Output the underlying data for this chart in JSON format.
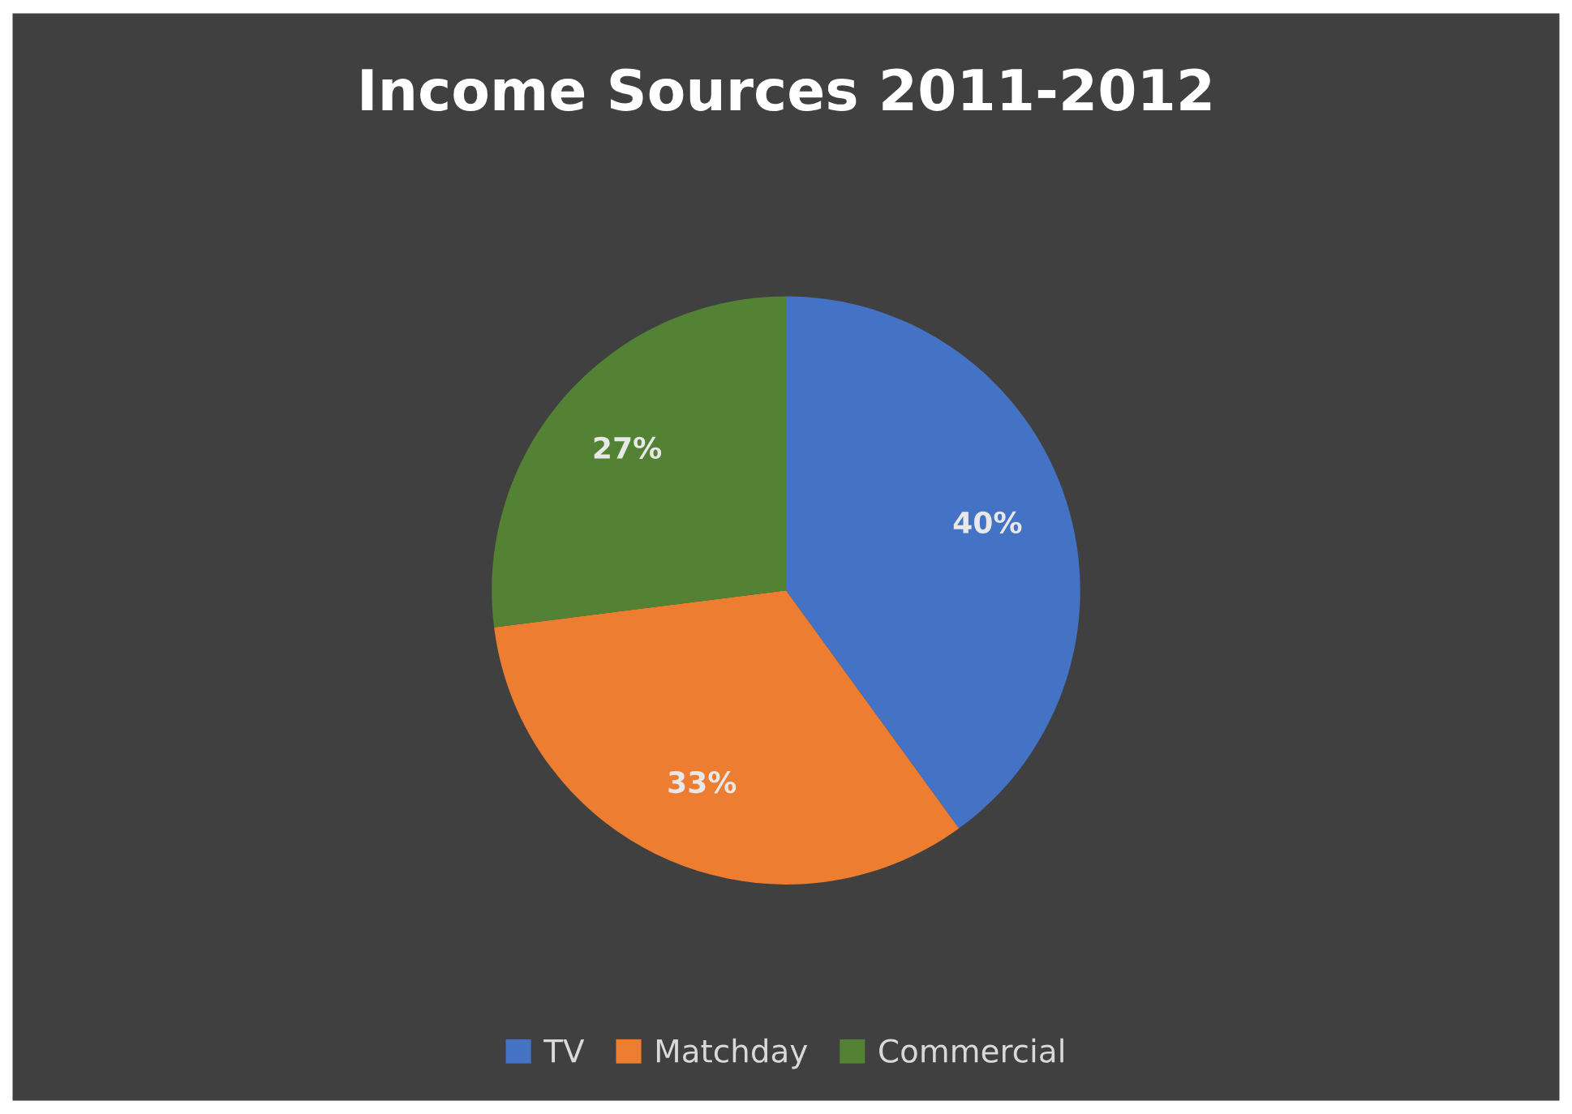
{
  "chart_data": {
    "type": "pie",
    "title": "Income Sources 2011-2012",
    "categories": [
      "TV",
      "Matchday",
      "Commercial"
    ],
    "values": [
      40,
      33,
      27
    ],
    "colors": [
      "#4472c4",
      "#ed7d31",
      "#548235"
    ],
    "value_labels": [
      "40%",
      "33%",
      "27%"
    ],
    "legend": "bottom"
  }
}
